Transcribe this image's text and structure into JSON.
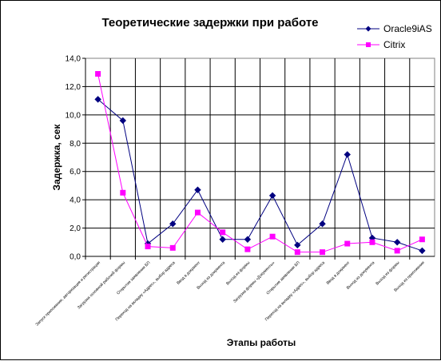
{
  "chart_data": {
    "type": "line",
    "title": "Теоретические задержки при работе",
    "xlabel": "Этапы работы",
    "ylabel": "Задержка, сек",
    "ylim": [
      0,
      14
    ],
    "yticks": [
      "0,0",
      "2,0",
      "4,0",
      "6,0",
      "8,0",
      "10,0",
      "12,0",
      "14,0"
    ],
    "grid": true,
    "legend": "top-right",
    "categories": [
      "Запуск приложения, авторизация и регистрация",
      "Загрузка основной рабочей формы",
      "Открытие заявления БП",
      "Переход на вкладку «Адрес», выбор адреса",
      "Ввод в документ",
      "Выход из документа",
      "Выход из формы",
      "Загрузка формы «Документы»",
      "Открытие заявления БП",
      "Переход на вкладку «Адрес», выбор адреса",
      "Ввод в документ",
      "Выход из документа",
      "Выход из формы",
      "Выход из приложения"
    ],
    "series": [
      {
        "name": "Oracle9iAS",
        "color": "#000080",
        "marker": "diamond",
        "values": [
          11.1,
          9.6,
          0.9,
          2.3,
          4.7,
          1.2,
          1.2,
          4.3,
          0.8,
          2.3,
          7.2,
          1.3,
          1.0,
          0.4
        ]
      },
      {
        "name": "Citrix",
        "color": "#ff00ff",
        "marker": "square",
        "values": [
          12.9,
          4.5,
          0.7,
          0.6,
          3.1,
          1.7,
          0.5,
          1.4,
          0.3,
          0.3,
          0.9,
          1.0,
          0.4,
          1.2
        ]
      }
    ]
  }
}
